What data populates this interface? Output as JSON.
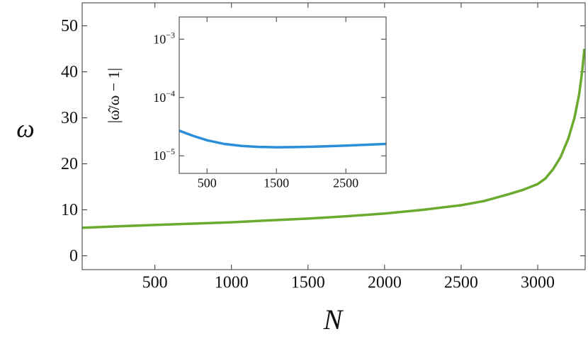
{
  "chart_data": [
    {
      "type": "line",
      "x_label": "N",
      "y_label": "ω",
      "x": [
        25,
        250,
        500,
        750,
        1000,
        1250,
        1500,
        1750,
        2000,
        2250,
        2500,
        2650,
        2800,
        2900,
        3000,
        3050,
        3100,
        3150,
        3200,
        3240,
        3270,
        3290,
        3305
      ],
      "values": [
        6.1,
        6.4,
        6.7,
        7.0,
        7.3,
        7.7,
        8.1,
        8.6,
        9.2,
        10.0,
        11.0,
        11.9,
        13.3,
        14.3,
        15.6,
        16.8,
        18.8,
        21.5,
        25.5,
        30,
        35,
        40,
        45
      ],
      "color": "#6aaa2e",
      "xlim": [
        25,
        3310
      ],
      "ylim": [
        -3,
        55
      ],
      "xticks": [
        500,
        1000,
        1500,
        2000,
        2500,
        3000
      ],
      "yticks": [
        0,
        10,
        20,
        30,
        40,
        50
      ]
    },
    {
      "type": "line",
      "y_label": "|ω̂/ω − 1|",
      "log_y": true,
      "x": [
        100,
        300,
        500,
        750,
        1000,
        1250,
        1500,
        1750,
        2000,
        2250,
        2500,
        2750,
        3080
      ],
      "values": [
        2.7e-05,
        2.2e-05,
        1.85e-05,
        1.6e-05,
        1.48e-05,
        1.42e-05,
        1.4e-05,
        1.41e-05,
        1.43e-05,
        1.46e-05,
        1.5e-05,
        1.54e-05,
        1.6e-05
      ],
      "color": "#2a8fd8",
      "xlim": [
        100,
        3080
      ],
      "ylim": [
        5e-06,
        0.0024
      ],
      "xticks": [
        500,
        1500,
        2500
      ],
      "yticks": [
        {
          "value": 1e-05,
          "label": "10−5"
        },
        {
          "value": 0.0001,
          "label": "10−4"
        },
        {
          "value": 0.001,
          "label": "10−3"
        }
      ]
    }
  ]
}
